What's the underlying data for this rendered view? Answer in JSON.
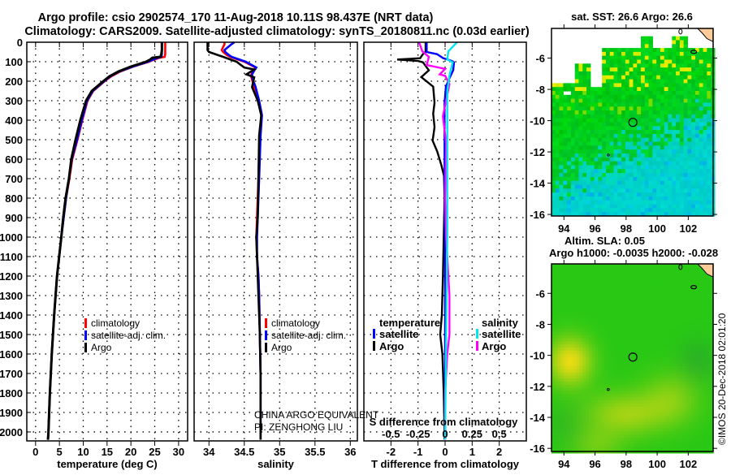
{
  "header": {
    "line1": "Argo profile: csio 2902574_170 11-Aug-2018 10.11S 98.437E (NRT data)",
    "line2": "Climatology: CARS2009. Satellite-adjusted climatology: synTS_20180811.nc (0.03d earlier)"
  },
  "colors": {
    "climatology": "#ff0000",
    "satellite": "#0000ff",
    "argo": "#000000",
    "sal_satellite": "#00e5ee",
    "sal_argo": "#ff00ff"
  },
  "chart_data": [
    {
      "type": "line",
      "id": "temperature",
      "xlabel": "temperature (deg C)",
      "ylabel": "",
      "xlim": [
        -1.84,
        31.9
      ],
      "ylim": [
        0,
        2046
      ],
      "xticks": [
        "0",
        "5",
        "10",
        "15",
        "20",
        "25",
        "30"
      ],
      "yticks": [
        "0",
        "100",
        "200",
        "300",
        "400",
        "500",
        "600",
        "700",
        "800",
        "900",
        "1000",
        "1100",
        "1200",
        "1300",
        "1400",
        "1500",
        "1600",
        "1700",
        "1800",
        "1900",
        "2000"
      ],
      "grid": true,
      "legend": [
        "climatology",
        "satellite-adj. clim.",
        "Argo"
      ],
      "depth": [
        0,
        20,
        40,
        60,
        75,
        80,
        90,
        100,
        125,
        150,
        175,
        200,
        250,
        300,
        400,
        500,
        600,
        700,
        800,
        900,
        1000,
        1200,
        1400,
        1600,
        1800,
        2000,
        2040
      ],
      "series": [
        {
          "name": "climatology",
          "values": [
            27.2,
            27.2,
            27.2,
            27.2,
            27.1,
            26,
            24.8,
            23.8,
            20.5,
            17.8,
            15.9,
            14.5,
            12.1,
            10.9,
            9.8,
            8.8,
            7.7,
            7.1,
            6.4,
            5.9,
            5.4,
            4.5,
            3.9,
            3.4,
            3.0,
            2.7,
            2.6
          ]
        },
        {
          "name": "satellite-adj. clim.",
          "values": [
            26.5,
            26.5,
            26.5,
            26.5,
            26.4,
            25.6,
            24.6,
            23.6,
            20.4,
            17.6,
            15.7,
            14.4,
            12.0,
            10.8,
            9.7,
            8.7,
            7.6,
            7.0,
            6.4,
            5.9,
            5.4,
            4.5,
            3.9,
            3.4,
            3.0,
            2.7,
            2.6
          ]
        },
        {
          "name": "Argo",
          "values": [
            26.5,
            26.5,
            26.5,
            26.4,
            26.2,
            24.5,
            24,
            23.2,
            20,
            17.4,
            15.5,
            14.2,
            11.8,
            10.6,
            9.4,
            8.4,
            7.5,
            7.0,
            6.3,
            5.8,
            5.4,
            4.5,
            3.9,
            3.4,
            3.0,
            2.7,
            2.6
          ]
        }
      ]
    },
    {
      "type": "line",
      "id": "salinity",
      "xlabel": "salinity",
      "xlim": [
        33.79,
        36.1
      ],
      "ylim": [
        0,
        2046
      ],
      "xticks": [
        "34",
        "34.5",
        "35",
        "35.5",
        "36"
      ],
      "grid": true,
      "legend": [
        "climatology",
        "satellite-adj. clim.",
        "Argo"
      ],
      "depth": [
        0,
        10,
        40,
        50,
        65,
        75,
        100,
        130,
        140,
        165,
        180,
        230,
        300,
        375,
        480,
        700,
        900,
        1000,
        1100,
        1200,
        1300,
        1500,
        1700,
        2000,
        2040
      ],
      "series": [
        {
          "name": "climatology",
          "values": [
            34.22,
            34.22,
            34.18,
            34.2,
            34.25,
            34.3,
            34.5,
            34.66,
            34.64,
            34.6,
            34.6,
            34.64,
            34.7,
            34.74,
            34.72,
            34.7,
            34.68,
            34.67,
            34.68,
            34.7,
            34.71,
            34.72,
            34.73,
            34.73,
            34.73
          ]
        },
        {
          "name": "satellite-adj. clim.",
          "values": [
            34.36,
            34.32,
            34.22,
            34.23,
            34.28,
            34.32,
            34.52,
            34.67,
            34.65,
            34.61,
            34.61,
            34.66,
            34.71,
            34.75,
            34.73,
            34.71,
            34.69,
            34.68,
            34.68,
            34.7,
            34.71,
            34.72,
            34.73,
            34.73,
            34.73
          ]
        },
        {
          "name": "Argo",
          "values": [
            33.98,
            33.98,
            33.98,
            34.0,
            34.12,
            34.2,
            34.39,
            34.5,
            34.64,
            34.53,
            34.64,
            34.61,
            34.69,
            34.74,
            34.71,
            34.7,
            34.69,
            34.67,
            34.68,
            34.69,
            34.7,
            34.72,
            34.73,
            34.73,
            34.73
          ]
        }
      ]
    },
    {
      "type": "line",
      "id": "difference",
      "xlabel": "T difference from climatology",
      "x2label": "S difference from climatology",
      "xlim": [
        -3,
        3
      ],
      "x2lim": [
        -0.75,
        0.75
      ],
      "ylim": [
        0,
        2046
      ],
      "xticks": [
        "-2",
        "-1",
        "0",
        "1",
        "2"
      ],
      "x2ticks": [
        "-0.5",
        "-0.25",
        "0",
        "0.25",
        "0.5"
      ],
      "grid": true,
      "legend": {
        "temperature_title": "temperature",
        "salinity_title": "salinity",
        "t_satellite": "satellite",
        "t_argo": "Argo",
        "s_satellite": "satellite",
        "s_argo": "Argo"
      },
      "series": [
        {
          "name": "temperature Argo",
          "axis": "T",
          "depth": [
            0,
            50,
            61,
            82,
            89,
            96,
            103,
            144,
            179,
            228,
            311,
            367,
            436,
            505,
            561,
            630,
            686,
            800,
            1000,
            1200,
            1400,
            1500,
            1600,
            1800,
            2000,
            2040
          ],
          "values": [
            -0.72,
            -0.72,
            -0.82,
            -0.92,
            -1.77,
            -1.0,
            -0.82,
            -0.6,
            -0.88,
            -0.44,
            -0.39,
            -0.44,
            -0.39,
            -0.46,
            -0.29,
            -0.14,
            -0.04,
            -0.02,
            -0.05,
            -0.08,
            -0.12,
            -0.18,
            -0.1,
            -0.05,
            -0.02,
            -0.02
          ]
        },
        {
          "name": "temperature satellite",
          "axis": "T",
          "depth": [
            0,
            50,
            61,
            82,
            89,
            96,
            103,
            144,
            179,
            228,
            311,
            367,
            436,
            505,
            561,
            630,
            686,
            800,
            1000,
            1200,
            1400,
            1500,
            1600,
            1800,
            2000,
            2040
          ],
          "values": [
            -0.68,
            -0.68,
            -0.3,
            -0.07,
            0.1,
            0.25,
            0.33,
            0.3,
            0.18,
            0.03,
            -0.02,
            -0.02,
            -0.02,
            -0.02,
            -0.02,
            -0.02,
            -0.02,
            -0.01,
            0,
            0,
            0,
            0,
            0,
            0,
            0,
            0
          ]
        },
        {
          "name": "salinity Argo",
          "axis": "S",
          "depth": [
            0,
            47,
            75,
            117,
            137,
            165,
            172,
            215,
            380,
            520,
            800,
            1000,
            1300,
            1500,
            1600,
            1800,
            2000,
            2040
          ],
          "values": [
            -0.24,
            -0.21,
            -0.15,
            -0.17,
            0.0,
            -0.05,
            0.0,
            0.04,
            -0.02,
            0.01,
            0.0,
            0.01,
            0.04,
            0.04,
            0.02,
            0.0,
            0.0,
            0.0
          ]
        },
        {
          "name": "salinity satellite",
          "axis": "S",
          "depth": [
            0,
            47,
            89,
            103,
            172,
            250,
            600,
            1000,
            1500,
            2000,
            2040
          ],
          "values": [
            0.11,
            0.03,
            0.02,
            0.07,
            0.04,
            0.02,
            0.02,
            0.02,
            0.01,
            0.0,
            0.0
          ]
        }
      ]
    },
    {
      "type": "heatmap",
      "id": "sst_map",
      "title": "sat. SST: 26.6 Argo: 26.6",
      "xlim": [
        93.2,
        103.6
      ],
      "ylim": [
        -16.1,
        -4.1
      ],
      "xticks": [
        "94",
        "96",
        "98",
        "100",
        "102"
      ],
      "yticks": [
        "-6",
        "-8",
        "-10",
        "-12",
        "-14",
        "-16"
      ],
      "marker": {
        "lon": 98.437,
        "lat": -10.11
      }
    },
    {
      "type": "heatmap",
      "id": "sla_map",
      "title": "Altim. SLA: 0.05",
      "subtitle": "Argo h1000: -0.0035 h2000: -0.028",
      "xlim": [
        93.2,
        103.6
      ],
      "ylim": [
        -16.2,
        -4.1
      ],
      "xticks": [
        "94",
        "96",
        "98",
        "100",
        "102"
      ],
      "yticks": [
        "-6",
        "-8",
        "-10",
        "-12",
        "-14",
        "-16"
      ],
      "marker": {
        "lon": 98.437,
        "lat": -10.11
      }
    }
  ],
  "annotations": {
    "program": "CHINA ARGO EQUIVALENT",
    "pi": "PI: ZENGHONG LIU",
    "watermark": "©IMOS 20-Dec-2018 02:01:20"
  }
}
